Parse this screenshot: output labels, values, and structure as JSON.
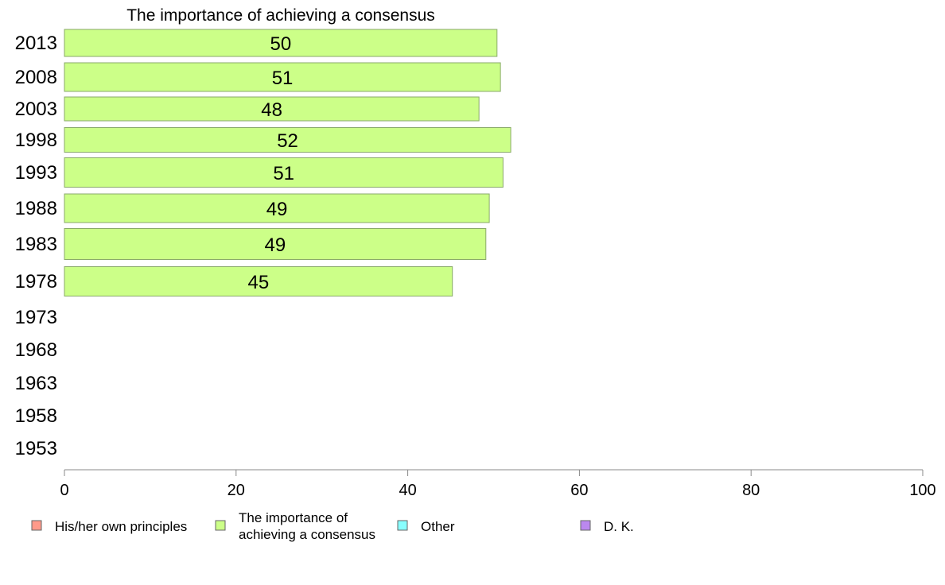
{
  "chart_data": {
    "type": "bar",
    "orientation": "horizontal",
    "title": "The importance of achieving a consensus",
    "categories": [
      "2013",
      "2008",
      "2003",
      "1998",
      "1993",
      "1988",
      "1983",
      "1978",
      "1973",
      "1968",
      "1963",
      "1958",
      "1953"
    ],
    "series": [
      {
        "name": "The importance of achieving a consensus",
        "color": "#ccff88",
        "values": [
          50.4,
          50.8,
          48.3,
          52,
          51.1,
          49.5,
          49.1,
          45.2,
          null,
          null,
          null,
          null,
          null
        ],
        "labels": [
          "50",
          "51",
          "48",
          "52",
          "51",
          "49",
          "49",
          "45",
          "",
          "",
          "",
          "",
          ""
        ]
      }
    ],
    "xlim": [
      0,
      100
    ],
    "x_ticks": [
      "0",
      "20",
      "40",
      "60",
      "80",
      "100"
    ],
    "grid": false,
    "legend": [
      {
        "label_lines": [
          "His/her own principles"
        ],
        "color": "#ff9a8a"
      },
      {
        "label_lines": [
          "The importance of",
          "achieving a consensus"
        ],
        "color": "#ccff88"
      },
      {
        "label_lines": [
          "Other"
        ],
        "color": "#88ffff"
      },
      {
        "label_lines": [
          "D. K."
        ],
        "color": "#bb88ee"
      }
    ],
    "legend_position": "bottom"
  }
}
